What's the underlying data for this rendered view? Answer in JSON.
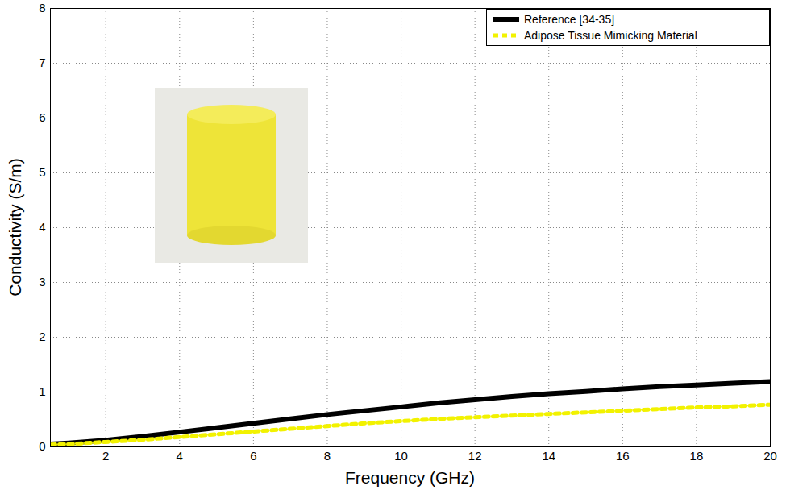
{
  "chart_data": {
    "type": "line",
    "xlabel": "Frequency (GHz)",
    "ylabel": "Conductivity (S/m)",
    "x": [
      0.5,
      1,
      2,
      3,
      4,
      5,
      6,
      7,
      8,
      9,
      10,
      11,
      12,
      13,
      14,
      15,
      16,
      17,
      18,
      19,
      20
    ],
    "series": [
      {
        "name": "Reference [34-35]",
        "color": "#000000",
        "line_style": "solid",
        "values": [
          0.05,
          0.07,
          0.12,
          0.19,
          0.27,
          0.35,
          0.43,
          0.51,
          0.59,
          0.66,
          0.73,
          0.8,
          0.86,
          0.92,
          0.97,
          1.01,
          1.06,
          1.1,
          1.13,
          1.16,
          1.19
        ]
      },
      {
        "name": "Adipose Tissue Mimicking Material",
        "color": "#f2f200",
        "line_style": "dashed",
        "values": [
          0.04,
          0.05,
          0.09,
          0.13,
          0.18,
          0.23,
          0.28,
          0.33,
          0.38,
          0.43,
          0.47,
          0.51,
          0.54,
          0.57,
          0.6,
          0.63,
          0.66,
          0.69,
          0.72,
          0.74,
          0.77
        ]
      }
    ],
    "xlim": [
      0.5,
      20
    ],
    "xticks": [
      2,
      4,
      6,
      8,
      10,
      12,
      14,
      16,
      18,
      20
    ],
    "ylim": [
      0,
      8
    ],
    "yticks": [
      0,
      1,
      2,
      3,
      4,
      5,
      6,
      7,
      8
    ],
    "grid": true,
    "legend": "top-right"
  }
}
